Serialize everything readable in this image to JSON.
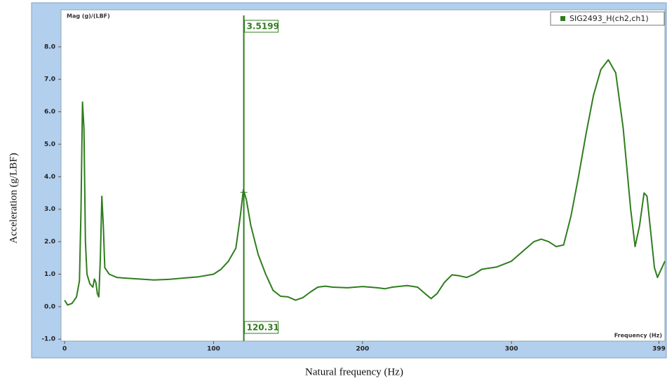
{
  "chart_data": {
    "type": "line",
    "plot_title": "Mag (g)/(LBF)",
    "x_axis_caption": "Frequency (Hz)",
    "xlabel": "Natural frequency (Hz)",
    "ylabel": "Acceleration (g/LBF)",
    "x": [
      0,
      2,
      5,
      8,
      10,
      11,
      12,
      13,
      14,
      15,
      17,
      19,
      20,
      21,
      22,
      23,
      24,
      25,
      26,
      27,
      30,
      35,
      40,
      50,
      60,
      70,
      80,
      90,
      100,
      105,
      110,
      115,
      118,
      120,
      122,
      125,
      130,
      135,
      140,
      145,
      150,
      155,
      160,
      165,
      170,
      175,
      180,
      190,
      200,
      210,
      215,
      220,
      230,
      237,
      242,
      246,
      250,
      255,
      260,
      265,
      270,
      275,
      280,
      290,
      300,
      310,
      315,
      320,
      325,
      330,
      335,
      340,
      345,
      350,
      355,
      360,
      365,
      370,
      375,
      380,
      383,
      386,
      389,
      391,
      393,
      396,
      398,
      401,
      403
    ],
    "series": [
      {
        "name": "SIG2493_H(ch2,ch1)",
        "color": "#2f7d1e",
        "values": [
          0.2,
          0.05,
          0.1,
          0.3,
          0.8,
          3.0,
          6.3,
          5.5,
          2.0,
          1.0,
          0.7,
          0.6,
          0.85,
          0.75,
          0.4,
          0.3,
          1.5,
          3.4,
          2.5,
          1.2,
          1.0,
          0.9,
          0.88,
          0.85,
          0.82,
          0.84,
          0.88,
          0.92,
          1.0,
          1.15,
          1.4,
          1.8,
          2.8,
          3.6,
          3.3,
          2.5,
          1.6,
          1.0,
          0.5,
          0.32,
          0.3,
          0.2,
          0.28,
          0.45,
          0.6,
          0.63,
          0.6,
          0.58,
          0.62,
          0.58,
          0.55,
          0.6,
          0.65,
          0.6,
          0.4,
          0.25,
          0.4,
          0.75,
          0.98,
          0.95,
          0.9,
          1.0,
          1.15,
          1.22,
          1.4,
          1.8,
          2.0,
          2.08,
          2.0,
          1.85,
          1.9,
          2.8,
          4.0,
          5.3,
          6.5,
          7.3,
          7.6,
          7.2,
          5.5,
          3.0,
          1.85,
          2.5,
          3.5,
          3.4,
          2.5,
          1.2,
          0.9,
          1.2,
          1.4
        ]
      }
    ],
    "cursor": {
      "x": 120.31,
      "y": 3.5199
    },
    "xlim": [
      -2.4,
      403
    ],
    "ylim": [
      -1.06,
      9.14
    ],
    "xticks": [
      0,
      100,
      200,
      300,
      399
    ],
    "yticks": [
      {
        "value": -1,
        "label": "-1.0"
      },
      {
        "value": 0,
        "label": "0.0"
      },
      {
        "value": 1,
        "label": "1.0"
      },
      {
        "value": 2,
        "label": "2.0"
      },
      {
        "value": 3,
        "label": "3.0"
      },
      {
        "value": 4,
        "label": "4.0"
      },
      {
        "value": 5,
        "label": "5.0"
      },
      {
        "value": 6,
        "label": "6.0"
      },
      {
        "value": 7,
        "label": "7.0"
      },
      {
        "value": 8,
        "label": "8.0"
      }
    ]
  }
}
